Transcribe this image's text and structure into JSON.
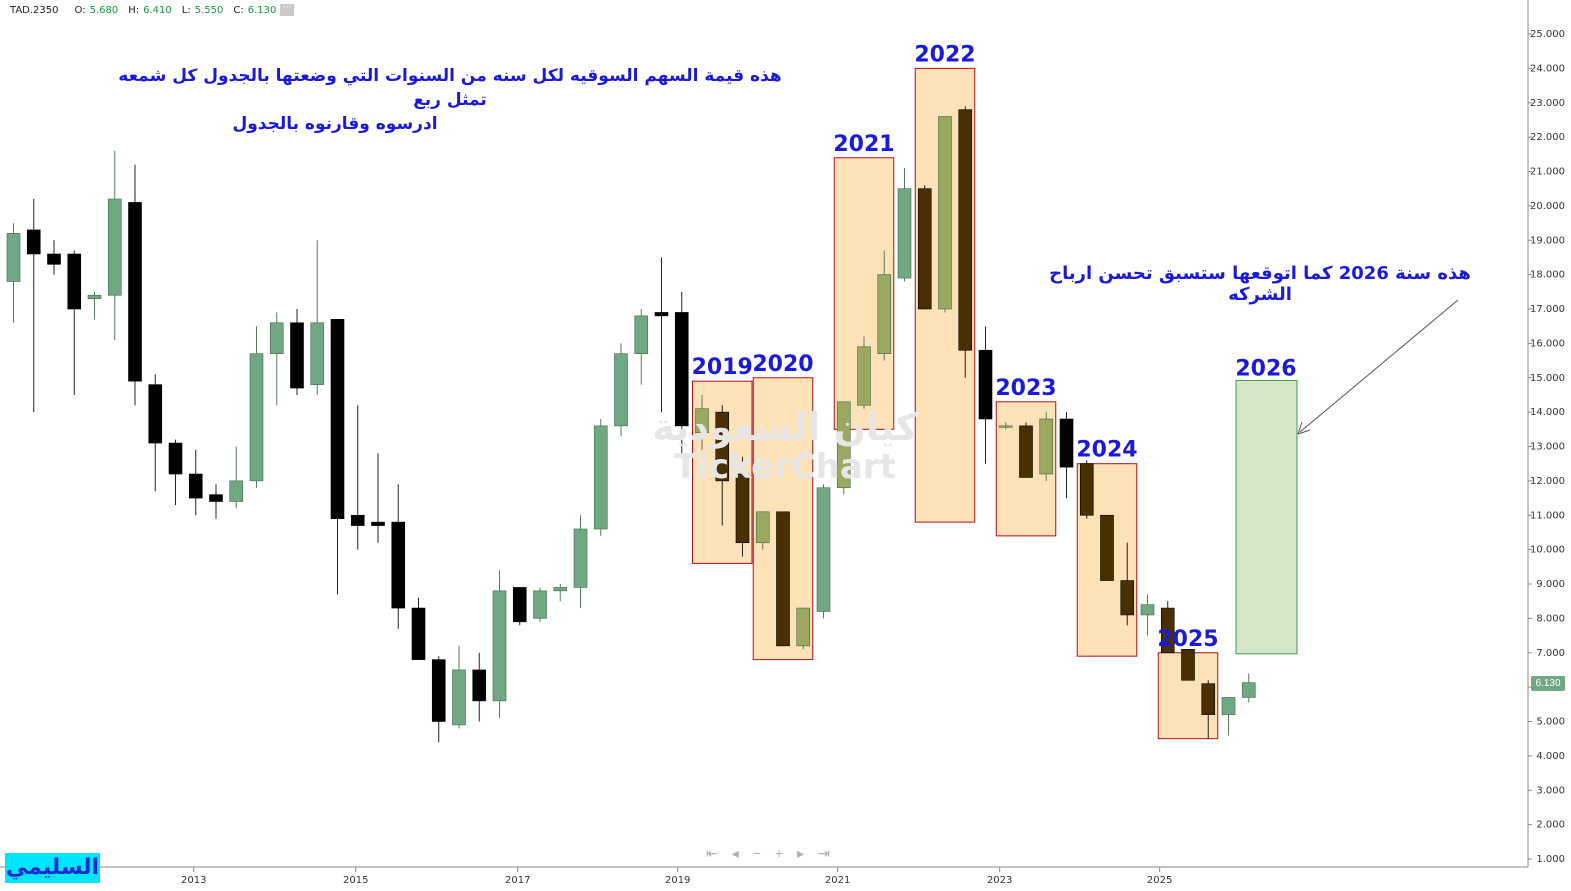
{
  "header": {
    "symbol": "TAD.2350",
    "open_label": "O:",
    "open": "5.680",
    "high_label": "H:",
    "high": "6.410",
    "low_label": "L:",
    "low": "5.550",
    "close_label": "C:",
    "close": "6.130"
  },
  "annotations": {
    "top_line1": "هذه قيمة السهم السوقيه لكل سنه من السنوات التي وضعتها بالجدول كل شمعه تمثل ربع",
    "top_line2": "ادرسوه وقارنوه بالجدول",
    "forecast": "هذه سنة 2026 كما اتوقعها ستسبق تحسن ارباح الشركه"
  },
  "author": "السليمي",
  "watermark": {
    "arabic": "كيان السعودية",
    "latin": "TickerChart"
  },
  "last_price": "6.130",
  "nav_icons": [
    "first-icon",
    "prev-icon",
    "zoom-out-icon",
    "zoom-in-icon",
    "next-icon",
    "last-icon"
  ],
  "colors": {
    "bull": "#6fa883",
    "bear": "#000000",
    "highlight_fill": "#fde2b7",
    "highlight_border": "#b0101a",
    "forecast_fill": "#d3e6c8",
    "forecast_border": "#4a9a4a",
    "year_label": "#1a1ad8"
  },
  "chart_data": {
    "type": "candlestick",
    "period": "quarterly",
    "y_axis": {
      "min": 1,
      "max": 25,
      "ticks": [
        "1.000",
        "2.000",
        "3.000",
        "4.000",
        "5.000",
        "6.000",
        "7.000",
        "8.000",
        "9.000",
        "10.000",
        "11.000",
        "12.000",
        "13.000",
        "14.000",
        "15.000",
        "16.000",
        "17.000",
        "18.000",
        "19.000",
        "20.000",
        "21.000",
        "22.000",
        "23.000",
        "24.000",
        "25.000"
      ]
    },
    "x_axis": {
      "ticks": [
        "2013",
        "2015",
        "2017",
        "2019",
        "2021",
        "2023",
        "2025"
      ]
    },
    "candles": [
      {
        "o": 17.8,
        "h": 19.5,
        "l": 16.6,
        "c": 19.2
      },
      {
        "o": 19.3,
        "h": 20.2,
        "l": 14.0,
        "c": 18.6
      },
      {
        "o": 18.6,
        "h": 19.0,
        "l": 18.0,
        "c": 18.3
      },
      {
        "o": 18.6,
        "h": 18.7,
        "l": 14.5,
        "c": 17.0
      },
      {
        "o": 17.3,
        "h": 17.5,
        "l": 16.7,
        "c": 17.4
      },
      {
        "o": 17.4,
        "h": 21.6,
        "l": 16.1,
        "c": 20.2
      },
      {
        "o": 20.1,
        "h": 21.2,
        "l": 14.2,
        "c": 14.9
      },
      {
        "o": 14.8,
        "h": 15.1,
        "l": 11.7,
        "c": 13.1
      },
      {
        "o": 13.1,
        "h": 13.2,
        "l": 11.3,
        "c": 12.2
      },
      {
        "o": 12.2,
        "h": 12.9,
        "l": 11.0,
        "c": 11.5
      },
      {
        "o": 11.6,
        "h": 11.9,
        "l": 10.9,
        "c": 11.4
      },
      {
        "o": 11.4,
        "h": 13.0,
        "l": 11.2,
        "c": 12.0
      },
      {
        "o": 12.0,
        "h": 16.5,
        "l": 11.8,
        "c": 15.7
      },
      {
        "o": 15.7,
        "h": 16.9,
        "l": 14.2,
        "c": 16.6
      },
      {
        "o": 16.6,
        "h": 17.0,
        "l": 14.5,
        "c": 14.7
      },
      {
        "o": 14.8,
        "h": 19.0,
        "l": 14.5,
        "c": 16.6
      },
      {
        "o": 16.7,
        "h": 16.7,
        "l": 8.7,
        "c": 10.9
      },
      {
        "o": 11.0,
        "h": 14.2,
        "l": 10.0,
        "c": 10.7
      },
      {
        "o": 10.8,
        "h": 12.8,
        "l": 10.2,
        "c": 10.7
      },
      {
        "o": 10.8,
        "h": 11.9,
        "l": 7.7,
        "c": 8.3
      },
      {
        "o": 8.3,
        "h": 8.6,
        "l": 6.8,
        "c": 6.8
      },
      {
        "o": 6.8,
        "h": 6.9,
        "l": 4.4,
        "c": 5.0
      },
      {
        "o": 4.9,
        "h": 7.2,
        "l": 4.8,
        "c": 6.5
      },
      {
        "o": 6.5,
        "h": 7.0,
        "l": 5.0,
        "c": 5.6
      },
      {
        "o": 5.6,
        "h": 9.4,
        "l": 5.1,
        "c": 8.8
      },
      {
        "o": 8.9,
        "h": 8.9,
        "l": 7.8,
        "c": 7.9
      },
      {
        "o": 8.0,
        "h": 8.9,
        "l": 7.9,
        "c": 8.8
      },
      {
        "o": 8.8,
        "h": 9.0,
        "l": 8.5,
        "c": 8.9
      },
      {
        "o": 8.9,
        "h": 11.0,
        "l": 8.3,
        "c": 10.6
      },
      {
        "o": 10.6,
        "h": 13.8,
        "l": 10.4,
        "c": 13.6
      },
      {
        "o": 13.6,
        "h": 16.0,
        "l": 13.3,
        "c": 15.7
      },
      {
        "o": 15.7,
        "h": 17.0,
        "l": 14.8,
        "c": 16.8
      },
      {
        "o": 16.9,
        "h": 18.5,
        "l": 14.0,
        "c": 16.8
      },
      {
        "o": 16.9,
        "h": 17.5,
        "l": 12.8,
        "c": 13.6
      },
      {
        "o": 13.4,
        "h": 14.5,
        "l": 12.9,
        "c": 14.1
      },
      {
        "o": 14.0,
        "h": 14.2,
        "l": 10.7,
        "c": 12.0
      },
      {
        "o": 12.2,
        "h": 12.7,
        "l": 9.8,
        "c": 10.2
      },
      {
        "o": 10.2,
        "h": 11.1,
        "l": 10.0,
        "c": 11.1
      },
      {
        "o": 11.1,
        "h": 11.1,
        "l": 7.2,
        "c": 7.2
      },
      {
        "o": 7.2,
        "h": 8.3,
        "l": 7.1,
        "c": 8.3
      },
      {
        "o": 8.2,
        "h": 11.9,
        "l": 8.0,
        "c": 11.8
      },
      {
        "o": 11.8,
        "h": 14.3,
        "l": 11.6,
        "c": 14.3
      },
      {
        "o": 14.2,
        "h": 16.2,
        "l": 14.1,
        "c": 15.9
      },
      {
        "o": 15.7,
        "h": 18.7,
        "l": 15.5,
        "c": 18.0
      },
      {
        "o": 17.9,
        "h": 21.1,
        "l": 17.8,
        "c": 20.5
      },
      {
        "o": 20.5,
        "h": 20.6,
        "l": 17.0,
        "c": 17.0
      },
      {
        "o": 17.0,
        "h": 22.6,
        "l": 16.9,
        "c": 22.6
      },
      {
        "o": 22.8,
        "h": 22.9,
        "l": 15.0,
        "c": 15.8
      },
      {
        "o": 15.8,
        "h": 16.5,
        "l": 12.5,
        "c": 13.8
      },
      {
        "o": 13.6,
        "h": 13.7,
        "l": 13.5,
        "c": 13.6
      },
      {
        "o": 13.6,
        "h": 13.7,
        "l": 12.1,
        "c": 12.1
      },
      {
        "o": 12.2,
        "h": 14.0,
        "l": 12.0,
        "c": 13.8
      },
      {
        "o": 13.8,
        "h": 14.0,
        "l": 11.5,
        "c": 12.4
      },
      {
        "o": 12.5,
        "h": 12.6,
        "l": 10.9,
        "c": 11.0
      },
      {
        "o": 11.0,
        "h": 11.0,
        "l": 9.1,
        "c": 9.1
      },
      {
        "o": 9.1,
        "h": 10.2,
        "l": 7.8,
        "c": 8.1
      },
      {
        "o": 8.1,
        "h": 8.7,
        "l": 7.5,
        "c": 8.4
      },
      {
        "o": 8.3,
        "h": 8.5,
        "l": 7.0,
        "c": 7.0
      },
      {
        "o": 7.1,
        "h": 7.1,
        "l": 6.2,
        "c": 6.2
      },
      {
        "o": 6.1,
        "h": 6.2,
        "l": 4.5,
        "c": 5.2
      },
      {
        "o": 5.2,
        "h": 5.7,
        "l": 4.6,
        "c": 5.7
      },
      {
        "o": 5.7,
        "h": 6.4,
        "l": 5.55,
        "c": 6.13
      }
    ],
    "year_highlights": [
      {
        "label": "2019",
        "from": 34,
        "to": 36,
        "low": 9.6,
        "high": 14.9
      },
      {
        "label": "2020",
        "from": 37,
        "to": 39,
        "low": 6.8,
        "high": 15.0
      },
      {
        "label": "2021",
        "from": 41,
        "to": 43,
        "low": 13.5,
        "high": 21.4
      },
      {
        "label": "2022",
        "from": 45,
        "to": 47,
        "low": 10.8,
        "high": 24.0
      },
      {
        "label": "2023",
        "from": 49,
        "to": 51,
        "low": 10.4,
        "high": 14.3
      },
      {
        "label": "2024",
        "from": 53,
        "to": 55,
        "low": 6.9,
        "high": 12.5
      },
      {
        "label": "2025",
        "from": 57,
        "to": 59,
        "low": 4.5,
        "high": 7.0
      }
    ],
    "forecast_2026": {
      "label": "2026",
      "low": 6.97,
      "high": 14.92
    }
  }
}
